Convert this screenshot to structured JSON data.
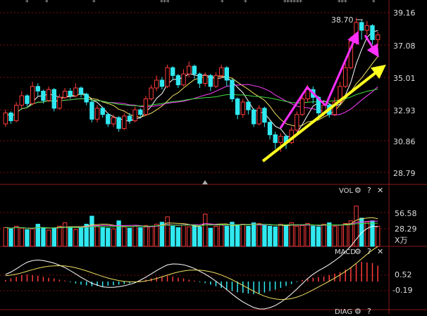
{
  "top_markers": [
    "*",
    "*",
    "*",
    "***",
    "*",
    "*",
    "******",
    "***",
    "*"
  ],
  "peak_label": "38.70",
  "price_axis": [
    "39.16",
    "37.08",
    "35.01",
    "32.93",
    "30.86",
    "28.79"
  ],
  "vol": {
    "title": "VOL",
    "gear": "⚙",
    "help": "?",
    "close": "✕",
    "axis": [
      "56.58",
      "28.29"
    ],
    "unit": "X万"
  },
  "macd": {
    "title": "MACD",
    "gear": "⚙",
    "help": "?",
    "close": "✕",
    "axis": [
      "0.52",
      "-0.19"
    ]
  },
  "bottom_panel": {
    "title": "DIAG",
    "gear": "⚙",
    "help": "?"
  },
  "colors": {
    "up": "#ff3b3b",
    "down": "#30e8f0",
    "ma5": "#ffffff",
    "ma10": "#f0e060",
    "ma20": "#ff40ff",
    "ma60": "#40e040",
    "annotation_magenta": "#ff30ff",
    "annotation_yellow": "#ffff20",
    "grid": "#7a1010"
  },
  "chart_data": {
    "type": "candlestick",
    "ylim": [
      28.5,
      39.6
    ],
    "candles": [
      [
        32.2,
        32.9,
        33.1,
        32.0
      ],
      [
        32.9,
        32.4,
        33.0,
        32.2
      ],
      [
        32.4,
        33.4,
        33.6,
        32.3
      ],
      [
        33.4,
        34.0,
        34.3,
        33.2
      ],
      [
        34.0,
        33.5,
        34.1,
        33.3
      ],
      [
        33.5,
        34.6,
        34.9,
        33.4
      ],
      [
        34.6,
        34.3,
        34.8,
        34.0
      ],
      [
        34.3,
        33.7,
        34.4,
        33.5
      ],
      [
        33.7,
        34.4,
        34.6,
        33.6
      ],
      [
        34.4,
        33.2,
        34.5,
        33.0
      ],
      [
        33.2,
        33.9,
        34.1,
        33.1
      ],
      [
        33.9,
        34.3,
        34.5,
        33.8
      ],
      [
        34.3,
        34.0,
        34.5,
        33.8
      ],
      [
        34.0,
        34.5,
        34.8,
        33.9
      ],
      [
        34.5,
        34.1,
        34.6,
        33.9
      ],
      [
        34.1,
        33.6,
        34.2,
        33.4
      ],
      [
        33.6,
        32.5,
        33.7,
        32.3
      ],
      [
        32.5,
        33.2,
        33.4,
        32.3
      ],
      [
        33.2,
        32.8,
        33.3,
        32.6
      ],
      [
        32.8,
        32.2,
        32.9,
        32.0
      ],
      [
        32.2,
        32.6,
        32.8,
        32.0
      ],
      [
        32.6,
        31.9,
        32.7,
        31.7
      ],
      [
        31.9,
        32.7,
        32.9,
        31.8
      ],
      [
        32.7,
        32.4,
        32.9,
        32.2
      ],
      [
        32.4,
        33.1,
        33.3,
        32.3
      ],
      [
        33.1,
        32.8,
        33.2,
        32.6
      ],
      [
        32.8,
        33.8,
        34.0,
        32.7
      ],
      [
        33.8,
        34.5,
        34.7,
        33.7
      ],
      [
        34.5,
        35.0,
        35.3,
        34.3
      ],
      [
        35.0,
        34.6,
        35.2,
        34.4
      ],
      [
        34.6,
        35.8,
        36.0,
        34.5
      ],
      [
        35.8,
        35.3,
        35.9,
        35.0
      ],
      [
        35.3,
        34.7,
        35.4,
        34.5
      ],
      [
        34.7,
        35.4,
        35.7,
        34.6
      ],
      [
        35.4,
        35.9,
        36.2,
        35.2
      ],
      [
        35.9,
        35.4,
        36.0,
        35.1
      ],
      [
        35.4,
        34.8,
        35.5,
        34.5
      ],
      [
        34.8,
        35.3,
        35.5,
        34.6
      ],
      [
        35.3,
        34.6,
        35.4,
        34.3
      ],
      [
        34.6,
        35.3,
        35.5,
        34.5
      ],
      [
        35.3,
        35.8,
        36.0,
        35.1
      ],
      [
        35.8,
        35.0,
        35.9,
        34.6
      ],
      [
        35.0,
        33.8,
        35.1,
        33.6
      ],
      [
        33.8,
        32.8,
        33.9,
        32.5
      ],
      [
        32.8,
        33.6,
        33.8,
        32.6
      ],
      [
        33.6,
        33.1,
        33.7,
        32.8
      ],
      [
        33.1,
        32.2,
        33.2,
        32.0
      ],
      [
        32.2,
        33.2,
        33.4,
        32.1
      ],
      [
        33.2,
        32.3,
        33.3,
        32.0
      ],
      [
        32.3,
        31.5,
        32.4,
        31.2
      ],
      [
        31.5,
        31.0,
        31.7,
        30.6
      ],
      [
        31.0,
        31.4,
        31.6,
        30.4
      ],
      [
        31.4,
        31.0,
        31.5,
        30.6
      ],
      [
        31.0,
        31.8,
        32.0,
        30.9
      ],
      [
        31.8,
        32.8,
        33.0,
        31.7
      ],
      [
        32.8,
        33.8,
        34.0,
        32.7
      ],
      [
        33.8,
        34.4,
        34.7,
        33.6
      ],
      [
        34.4,
        33.9,
        34.6,
        33.5
      ],
      [
        33.9,
        32.9,
        34.0,
        32.7
      ],
      [
        32.9,
        33.4,
        33.6,
        32.7
      ],
      [
        33.4,
        32.8,
        33.5,
        32.6
      ],
      [
        32.8,
        33.6,
        33.9,
        32.7
      ],
      [
        33.6,
        34.6,
        34.9,
        33.5
      ],
      [
        34.6,
        35.8,
        36.1,
        34.5
      ],
      [
        35.8,
        37.5,
        37.8,
        35.7
      ],
      [
        37.5,
        38.7,
        39.0,
        37.3
      ],
      [
        38.7,
        38.2,
        38.9,
        37.6
      ],
      [
        38.2,
        38.5,
        38.8,
        37.9
      ],
      [
        38.5,
        37.6,
        38.6,
        37.3
      ],
      [
        37.6,
        37.9,
        38.1,
        37.2
      ]
    ],
    "volume": [
      28,
      26,
      30,
      27,
      25,
      26,
      33,
      28,
      24,
      27,
      30,
      35,
      29,
      25,
      28,
      33,
      45,
      31,
      28,
      27,
      26,
      38,
      29,
      27,
      30,
      28,
      31,
      30,
      33,
      36,
      44,
      30,
      28,
      32,
      29,
      31,
      29,
      48,
      27,
      30,
      32,
      30,
      36,
      31,
      33,
      30,
      35,
      34,
      31,
      30,
      29,
      33,
      31,
      35,
      30,
      31,
      34,
      30,
      29,
      33,
      35,
      30,
      32,
      34,
      38,
      60,
      42,
      36,
      38,
      30
    ],
    "macd_hist": [
      0.05,
      0.1,
      0.15,
      0.2,
      0.22,
      0.2,
      0.18,
      0.15,
      0.12,
      0.1,
      0.06,
      0.03,
      -0.02,
      -0.06,
      -0.1,
      -0.12,
      -0.15,
      -0.14,
      -0.16,
      -0.13,
      -0.12,
      -0.1,
      -0.08,
      -0.06,
      -0.03,
      0.02,
      0.06,
      0.1,
      0.14,
      0.16,
      0.18,
      0.15,
      0.12,
      0.1,
      0.06,
      0.03,
      -0.02,
      -0.05,
      -0.1,
      -0.15,
      -0.2,
      -0.25,
      -0.3,
      -0.34,
      -0.36,
      -0.38,
      -0.4,
      -0.38,
      -0.35,
      -0.3,
      -0.26,
      -0.2,
      -0.14,
      -0.08,
      -0.02,
      0.05,
      0.1,
      0.12,
      0.14,
      0.16,
      0.2,
      0.25,
      0.3,
      0.38,
      0.45,
      0.55,
      0.62,
      0.6,
      0.58,
      0.5
    ]
  }
}
